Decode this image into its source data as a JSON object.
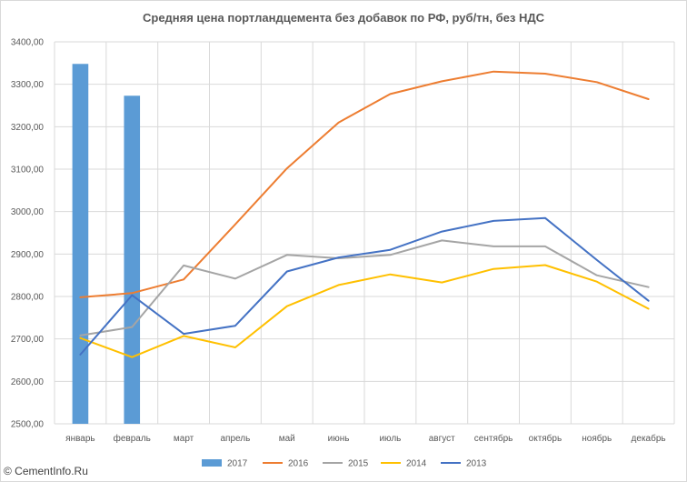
{
  "chart_data": {
    "type": "bar+line",
    "title": "Средняя цена портландцемента без добавок по РФ, руб/тн, без НДС",
    "categories": [
      "январь",
      "февраль",
      "март",
      "апрель",
      "май",
      "июнь",
      "июль",
      "август",
      "сентябрь",
      "октябрь",
      "ноябрь",
      "декабрь"
    ],
    "y_ticks": [
      "2500,00",
      "2600,00",
      "2700,00",
      "2800,00",
      "2900,00",
      "3000,00",
      "3100,00",
      "3200,00",
      "3300,00",
      "3400,00"
    ],
    "ylim": [
      2500,
      3400
    ],
    "grid": true,
    "legend_position": "bottom",
    "series": [
      {
        "name": "2017",
        "kind": "bar",
        "color": "#5b9bd5",
        "values": [
          3348,
          3273,
          null,
          null,
          null,
          null,
          null,
          null,
          null,
          null,
          null,
          null
        ]
      },
      {
        "name": "2016",
        "kind": "line",
        "color": "#ed7d31",
        "values": [
          2798,
          2808,
          2840,
          2970,
          3102,
          3210,
          3277,
          3307,
          3330,
          3325,
          3305,
          3265
        ]
      },
      {
        "name": "2015",
        "kind": "line",
        "color": "#a5a5a5",
        "values": [
          2708,
          2728,
          2873,
          2842,
          2898,
          2890,
          2898,
          2932,
          2918,
          2918,
          2850,
          2822
        ]
      },
      {
        "name": "2014",
        "kind": "line",
        "color": "#ffc000",
        "values": [
          2702,
          2657,
          2707,
          2680,
          2777,
          2827,
          2852,
          2833,
          2865,
          2874,
          2835,
          2771
        ]
      },
      {
        "name": "2013",
        "kind": "line",
        "color": "#4472c4",
        "values": [
          2663,
          2803,
          2712,
          2731,
          2859,
          2892,
          2910,
          2953,
          2978,
          2985,
          2886,
          2790
        ]
      }
    ]
  },
  "footer": {
    "copyright": "© CementInfo.Ru"
  }
}
